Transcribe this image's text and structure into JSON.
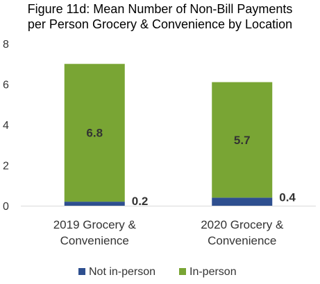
{
  "chart_data": {
    "type": "bar",
    "stacked": true,
    "title_line1": "Figure 11d: Mean Number of Non-Bill Payments",
    "title_line2": "per Person Grocery & Convenience by Location",
    "categories": [
      [
        "2019 Grocery &",
        "Convenience"
      ],
      [
        "2020 Grocery &",
        "Convenience"
      ]
    ],
    "series": [
      {
        "name": "Not in-person",
        "values": [
          0.2,
          0.4
        ],
        "color": "#2E4F8F"
      },
      {
        "name": "In-person",
        "values": [
          6.8,
          5.7
        ],
        "color": "#79A534"
      }
    ],
    "ylim": [
      0,
      8
    ],
    "yticks": [
      0,
      2,
      4,
      6,
      8
    ],
    "grid": false,
    "legend_position": "bottom"
  }
}
